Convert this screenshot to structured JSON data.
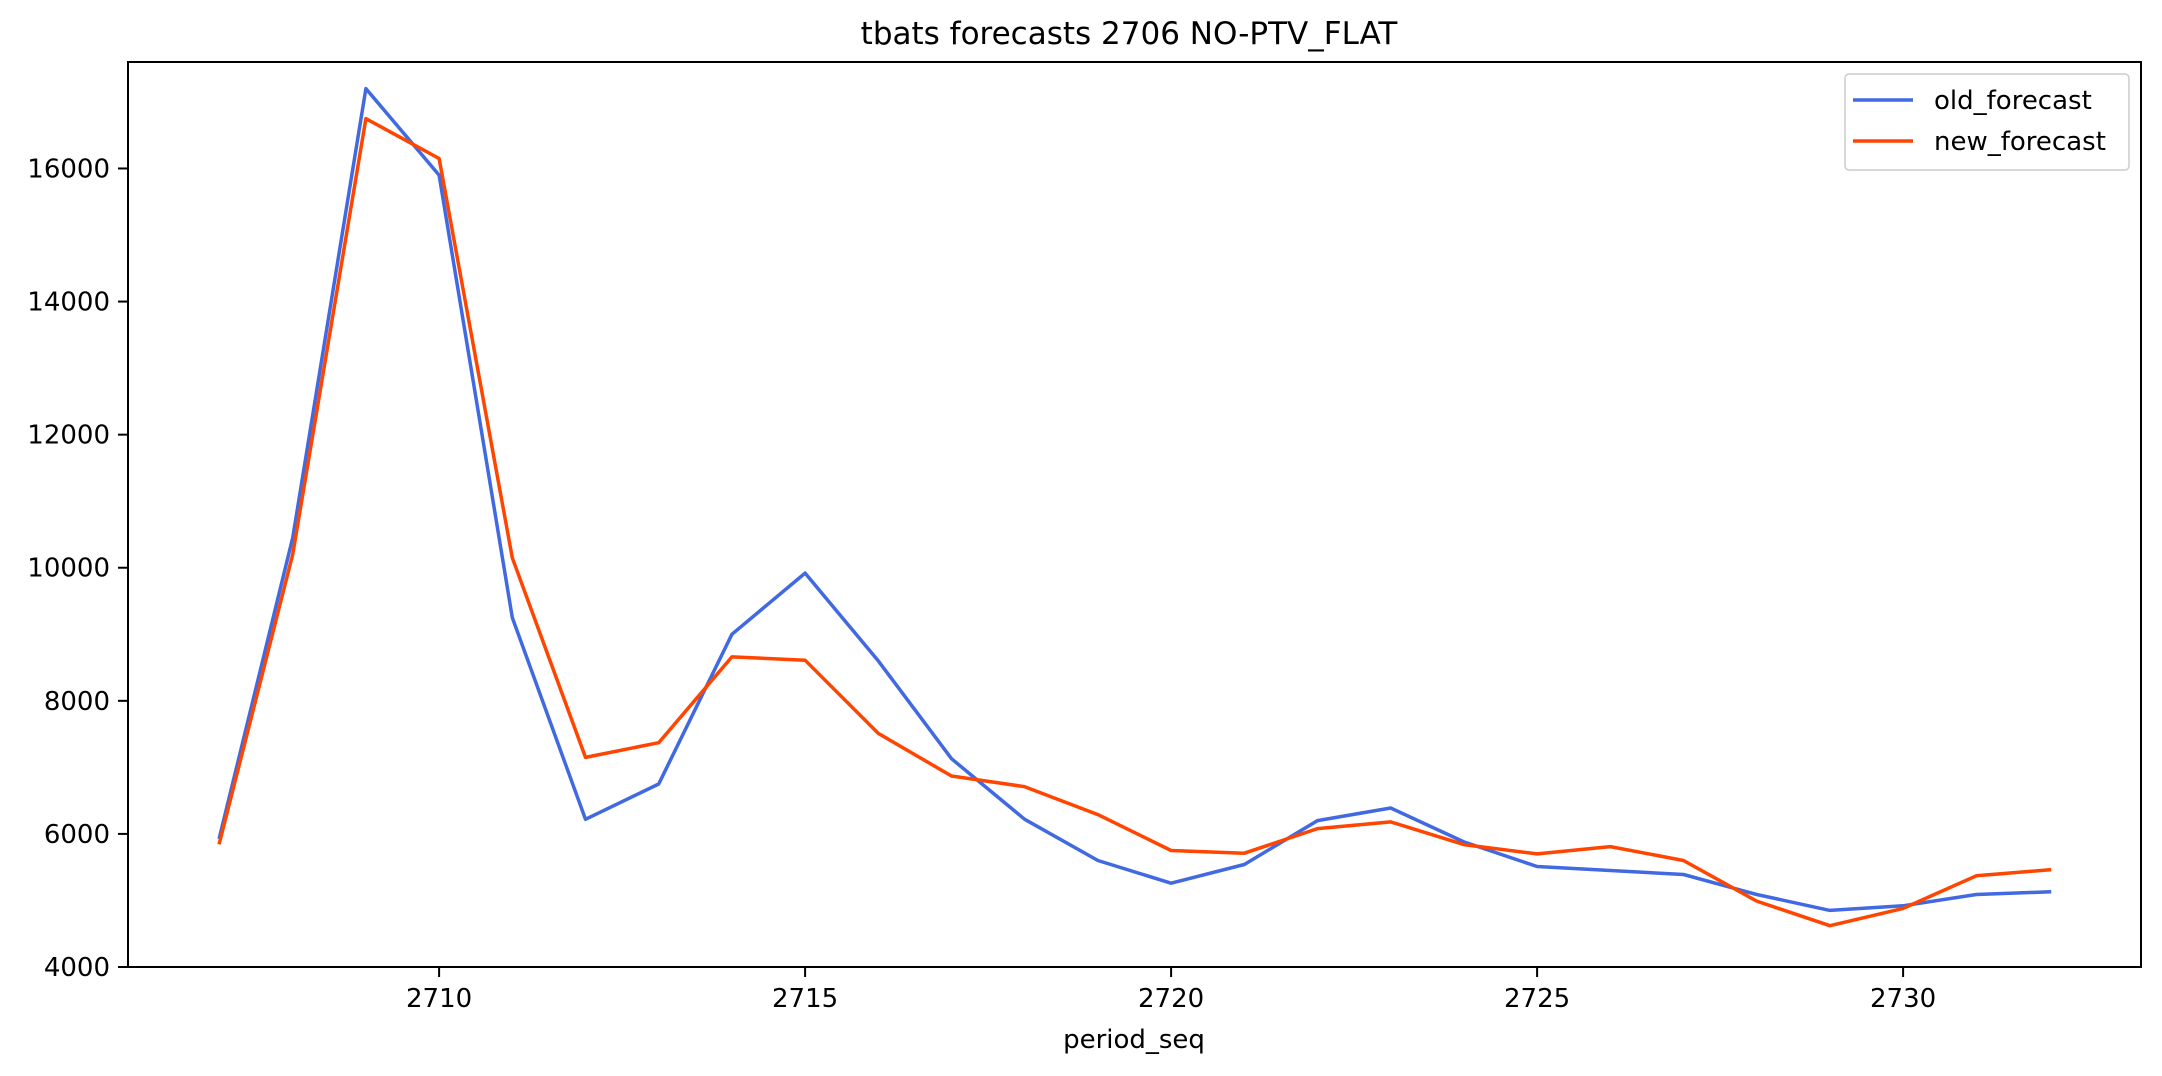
{
  "chart_data": {
    "type": "line",
    "title": "tbats forecasts 2706 NO-PTV_FLAT",
    "xlabel": "period_seq",
    "ylabel": "",
    "xlim": [
      2705.75,
      2733.25
    ],
    "ylim": [
      4000,
      17600
    ],
    "xticks": [
      2710,
      2715,
      2720,
      2725,
      2730
    ],
    "yticks": [
      4000,
      6000,
      8000,
      10000,
      12000,
      14000,
      16000
    ],
    "x": [
      2707,
      2708,
      2709,
      2710,
      2711,
      2712,
      2713,
      2714,
      2715,
      2716,
      2717,
      2718,
      2719,
      2720,
      2721,
      2722,
      2723,
      2724,
      2725,
      2726,
      2727,
      2728,
      2729,
      2730,
      2731,
      2732
    ],
    "series": [
      {
        "name": "old_forecast",
        "color": "#4169e1",
        "values": [
          5950,
          10450,
          17200,
          15900,
          9250,
          6220,
          6750,
          9000,
          9920,
          8600,
          7130,
          6220,
          5600,
          5260,
          5540,
          6200,
          6390,
          5880,
          5510,
          5450,
          5390,
          5090,
          4850,
          4920,
          5090,
          5130
        ]
      },
      {
        "name": "new_forecast",
        "color": "#ff4500",
        "values": [
          5870,
          10200,
          16750,
          16150,
          10150,
          7150,
          7370,
          8660,
          8610,
          7510,
          6870,
          6710,
          6290,
          5750,
          5710,
          6080,
          6180,
          5840,
          5700,
          5810,
          5600,
          4990,
          4620,
          4880,
          5370,
          5460
        ]
      }
    ],
    "legend": "top-right",
    "grid": false
  }
}
